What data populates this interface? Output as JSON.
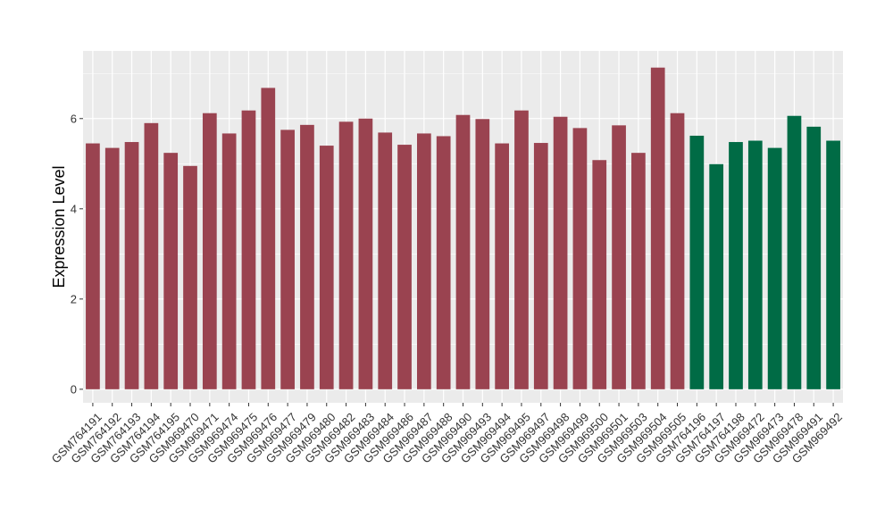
{
  "chart_data": {
    "type": "bar",
    "title": "",
    "xlabel": "",
    "ylabel": "Expression Level",
    "ylim": [
      -0.3,
      7.5
    ],
    "yticks": [
      0,
      2,
      4,
      6
    ],
    "grid": true,
    "colors": {
      "panel_bg": "#ebebeb",
      "grid": "#ffffff",
      "group_a": "#9a4350",
      "group_b": "#006b45"
    },
    "categories": [
      "GSM764191",
      "GSM764192",
      "GSM764193",
      "GSM764194",
      "GSM764195",
      "GSM969470",
      "GSM969471",
      "GSM969474",
      "GSM969475",
      "GSM969476",
      "GSM969477",
      "GSM969479",
      "GSM969480",
      "GSM969482",
      "GSM969483",
      "GSM969484",
      "GSM969486",
      "GSM969487",
      "GSM969488",
      "GSM969490",
      "GSM969493",
      "GSM969494",
      "GSM969495",
      "GSM969497",
      "GSM969498",
      "GSM969499",
      "GSM969500",
      "GSM969501",
      "GSM969503",
      "GSM969504",
      "GSM969505",
      "GSM764196",
      "GSM764197",
      "GSM764198",
      "GSM969472",
      "GSM969473",
      "GSM969478",
      "GSM969491",
      "GSM969492"
    ],
    "values": [
      5.45,
      5.35,
      5.48,
      5.9,
      5.24,
      4.95,
      6.12,
      5.67,
      6.18,
      6.68,
      5.75,
      5.86,
      5.4,
      5.93,
      6.0,
      5.69,
      5.42,
      5.67,
      5.61,
      6.08,
      5.99,
      5.45,
      6.18,
      5.46,
      6.04,
      5.79,
      5.08,
      5.85,
      5.24,
      7.13,
      6.12,
      5.62,
      4.99,
      5.48,
      5.51,
      5.35,
      6.06,
      5.82,
      5.51
    ],
    "groups": [
      "a",
      "a",
      "a",
      "a",
      "a",
      "a",
      "a",
      "a",
      "a",
      "a",
      "a",
      "a",
      "a",
      "a",
      "a",
      "a",
      "a",
      "a",
      "a",
      "a",
      "a",
      "a",
      "a",
      "a",
      "a",
      "a",
      "a",
      "a",
      "a",
      "a",
      "a",
      "b",
      "b",
      "b",
      "b",
      "b",
      "b",
      "b",
      "b"
    ]
  }
}
